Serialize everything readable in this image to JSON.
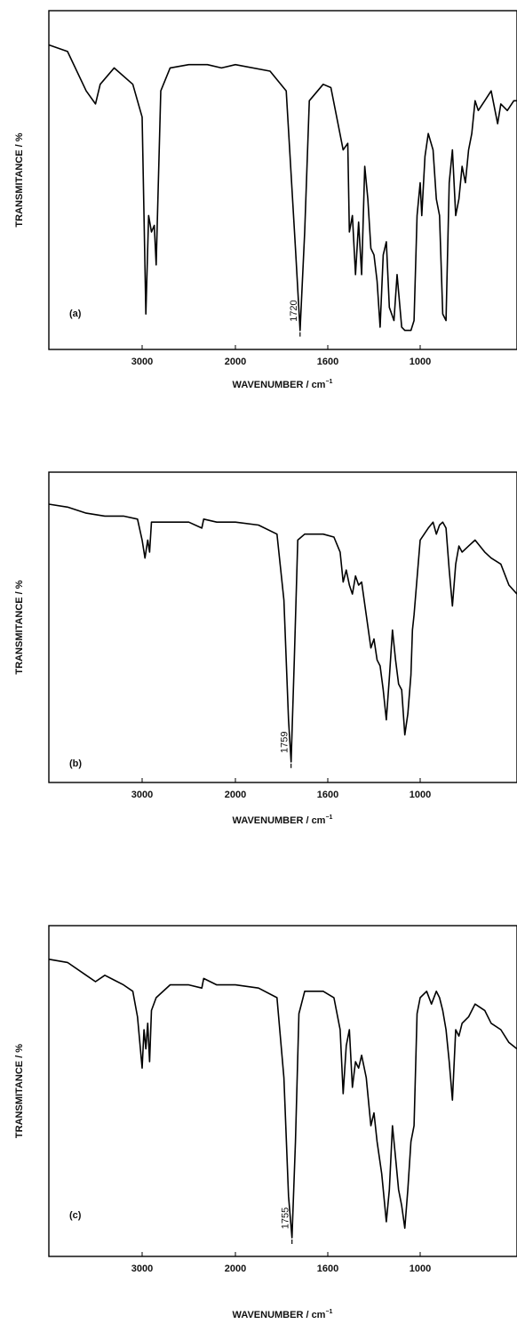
{
  "chart_data": [
    {
      "type": "line",
      "panel_label": "(a)",
      "xlabel": "WAVENUMBER / cm",
      "xlabel_superscript": "−1",
      "ylabel": "TRANSMITANCE / %",
      "x_reversed": true,
      "x_scale_change_at": 2000,
      "xlim": [
        4000,
        400
      ],
      "ylim": [
        0,
        100
      ],
      "grid": false,
      "xticks": [
        3000,
        2000,
        1600,
        1000
      ],
      "annotation": {
        "text": "1720",
        "x": 1720
      },
      "series": [
        {
          "values": [
            [
              4000,
              92
            ],
            [
              3800,
              90
            ],
            [
              3600,
              78
            ],
            [
              3500,
              74
            ],
            [
              3450,
              80
            ],
            [
              3300,
              85
            ],
            [
              3100,
              80
            ],
            [
              3000,
              70
            ],
            [
              2960,
              10
            ],
            [
              2930,
              40
            ],
            [
              2900,
              35
            ],
            [
              2870,
              37
            ],
            [
              2850,
              25
            ],
            [
              2800,
              78
            ],
            [
              2700,
              85
            ],
            [
              2500,
              86
            ],
            [
              2300,
              86
            ],
            [
              2150,
              85
            ],
            [
              2000,
              86
            ],
            [
              1850,
              84
            ],
            [
              1780,
              78
            ],
            [
              1740,
              30
            ],
            [
              1720,
              5
            ],
            [
              1700,
              35
            ],
            [
              1680,
              75
            ],
            [
              1620,
              80
            ],
            [
              1580,
              79
            ],
            [
              1500,
              60
            ],
            [
              1470,
              62
            ],
            [
              1460,
              35
            ],
            [
              1440,
              40
            ],
            [
              1420,
              22
            ],
            [
              1400,
              38
            ],
            [
              1380,
              22
            ],
            [
              1360,
              55
            ],
            [
              1340,
              45
            ],
            [
              1320,
              30
            ],
            [
              1300,
              28
            ],
            [
              1280,
              20
            ],
            [
              1260,
              6
            ],
            [
              1240,
              28
            ],
            [
              1220,
              32
            ],
            [
              1200,
              12
            ],
            [
              1170,
              8
            ],
            [
              1150,
              22
            ],
            [
              1120,
              6
            ],
            [
              1100,
              5
            ],
            [
              1060,
              5
            ],
            [
              1040,
              8
            ],
            [
              1020,
              40
            ],
            [
              1000,
              50
            ],
            [
              990,
              40
            ],
            [
              970,
              58
            ],
            [
              950,
              65
            ],
            [
              920,
              60
            ],
            [
              900,
              45
            ],
            [
              880,
              40
            ],
            [
              860,
              10
            ],
            [
              840,
              8
            ],
            [
              820,
              50
            ],
            [
              800,
              60
            ],
            [
              780,
              40
            ],
            [
              760,
              45
            ],
            [
              740,
              55
            ],
            [
              720,
              50
            ],
            [
              700,
              60
            ],
            [
              680,
              65
            ],
            [
              660,
              75
            ],
            [
              640,
              72
            ],
            [
              600,
              75
            ],
            [
              560,
              78
            ],
            [
              520,
              68
            ],
            [
              500,
              74
            ],
            [
              460,
              72
            ],
            [
              420,
              75
            ],
            [
              400,
              75
            ]
          ]
        }
      ]
    },
    {
      "type": "line",
      "panel_label": "(b)",
      "xlabel": "WAVENUMBER / cm",
      "xlabel_superscript": "−1",
      "ylabel": "TRANSMITANCE / %",
      "x_reversed": true,
      "x_scale_change_at": 2000,
      "xlim": [
        4000,
        400
      ],
      "ylim": [
        0,
        100
      ],
      "grid": false,
      "xticks": [
        3000,
        2000,
        1600,
        1000
      ],
      "annotation": {
        "text": "1759",
        "x": 1759
      },
      "series": [
        {
          "values": [
            [
              4000,
              92
            ],
            [
              3800,
              91
            ],
            [
              3600,
              89
            ],
            [
              3400,
              88
            ],
            [
              3200,
              88
            ],
            [
              3050,
              87
            ],
            [
              3000,
              80
            ],
            [
              2970,
              74
            ],
            [
              2940,
              80
            ],
            [
              2920,
              76
            ],
            [
              2900,
              86
            ],
            [
              2700,
              86
            ],
            [
              2500,
              86
            ],
            [
              2360,
              84
            ],
            [
              2340,
              87
            ],
            [
              2200,
              86
            ],
            [
              2000,
              86
            ],
            [
              1900,
              85
            ],
            [
              1820,
              82
            ],
            [
              1790,
              60
            ],
            [
              1770,
              20
            ],
            [
              1759,
              6
            ],
            [
              1745,
              40
            ],
            [
              1730,
              80
            ],
            [
              1700,
              82
            ],
            [
              1620,
              82
            ],
            [
              1560,
              81
            ],
            [
              1520,
              76
            ],
            [
              1500,
              66
            ],
            [
              1480,
              70
            ],
            [
              1460,
              65
            ],
            [
              1440,
              62
            ],
            [
              1420,
              68
            ],
            [
              1400,
              65
            ],
            [
              1380,
              66
            ],
            [
              1350,
              55
            ],
            [
              1320,
              44
            ],
            [
              1300,
              47
            ],
            [
              1280,
              40
            ],
            [
              1260,
              38
            ],
            [
              1240,
              30
            ],
            [
              1220,
              20
            ],
            [
              1200,
              34
            ],
            [
              1180,
              50
            ],
            [
              1160,
              40
            ],
            [
              1140,
              32
            ],
            [
              1120,
              30
            ],
            [
              1100,
              15
            ],
            [
              1080,
              22
            ],
            [
              1060,
              35
            ],
            [
              1050,
              50
            ],
            [
              1040,
              55
            ],
            [
              1000,
              80
            ],
            [
              950,
              84
            ],
            [
              920,
              86
            ],
            [
              900,
              82
            ],
            [
              880,
              85
            ],
            [
              860,
              86
            ],
            [
              840,
              84
            ],
            [
              820,
              70
            ],
            [
              800,
              58
            ],
            [
              780,
              72
            ],
            [
              760,
              78
            ],
            [
              740,
              76
            ],
            [
              700,
              78
            ],
            [
              660,
              80
            ],
            [
              600,
              76
            ],
            [
              560,
              74
            ],
            [
              500,
              72
            ],
            [
              450,
              65
            ],
            [
              400,
              62
            ]
          ]
        }
      ]
    },
    {
      "type": "line",
      "panel_label": "(c)",
      "xlabel": "WAVENUMBER / cm",
      "xlabel_superscript": "−1",
      "ylabel": "TRANSMITANCE / %",
      "x_reversed": true,
      "x_scale_change_at": 2000,
      "xlim": [
        4000,
        400
      ],
      "ylim": [
        0,
        100
      ],
      "grid": false,
      "xticks": [
        3000,
        2000,
        1600,
        1000
      ],
      "annotation": {
        "text": "1755",
        "x": 1755
      },
      "series": [
        {
          "values": [
            [
              4000,
              92
            ],
            [
              3800,
              91
            ],
            [
              3600,
              87
            ],
            [
              3500,
              85
            ],
            [
              3400,
              87
            ],
            [
              3200,
              84
            ],
            [
              3100,
              82
            ],
            [
              3050,
              74
            ],
            [
              3000,
              58
            ],
            [
              2980,
              70
            ],
            [
              2960,
              64
            ],
            [
              2940,
              72
            ],
            [
              2920,
              60
            ],
            [
              2900,
              76
            ],
            [
              2850,
              80
            ],
            [
              2700,
              84
            ],
            [
              2500,
              84
            ],
            [
              2360,
              83
            ],
            [
              2340,
              86
            ],
            [
              2200,
              84
            ],
            [
              2000,
              84
            ],
            [
              1900,
              83
            ],
            [
              1820,
              80
            ],
            [
              1790,
              55
            ],
            [
              1770,
              18
            ],
            [
              1755,
              5
            ],
            [
              1740,
              35
            ],
            [
              1725,
              75
            ],
            [
              1700,
              82
            ],
            [
              1620,
              82
            ],
            [
              1560,
              80
            ],
            [
              1520,
              70
            ],
            [
              1500,
              50
            ],
            [
              1480,
              65
            ],
            [
              1460,
              70
            ],
            [
              1440,
              52
            ],
            [
              1420,
              60
            ],
            [
              1400,
              58
            ],
            [
              1380,
              62
            ],
            [
              1350,
              55
            ],
            [
              1320,
              40
            ],
            [
              1300,
              44
            ],
            [
              1280,
              35
            ],
            [
              1250,
              25
            ],
            [
              1220,
              10
            ],
            [
              1200,
              20
            ],
            [
              1180,
              40
            ],
            [
              1160,
              30
            ],
            [
              1140,
              20
            ],
            [
              1120,
              15
            ],
            [
              1100,
              8
            ],
            [
              1080,
              20
            ],
            [
              1060,
              35
            ],
            [
              1040,
              40
            ],
            [
              1020,
              75
            ],
            [
              1000,
              80
            ],
            [
              960,
              82
            ],
            [
              930,
              78
            ],
            [
              900,
              82
            ],
            [
              880,
              80
            ],
            [
              860,
              76
            ],
            [
              840,
              70
            ],
            [
              820,
              60
            ],
            [
              800,
              48
            ],
            [
              780,
              70
            ],
            [
              760,
              68
            ],
            [
              740,
              72
            ],
            [
              700,
              74
            ],
            [
              660,
              78
            ],
            [
              600,
              76
            ],
            [
              560,
              72
            ],
            [
              500,
              70
            ],
            [
              450,
              66
            ],
            [
              400,
              64
            ]
          ]
        }
      ]
    }
  ]
}
